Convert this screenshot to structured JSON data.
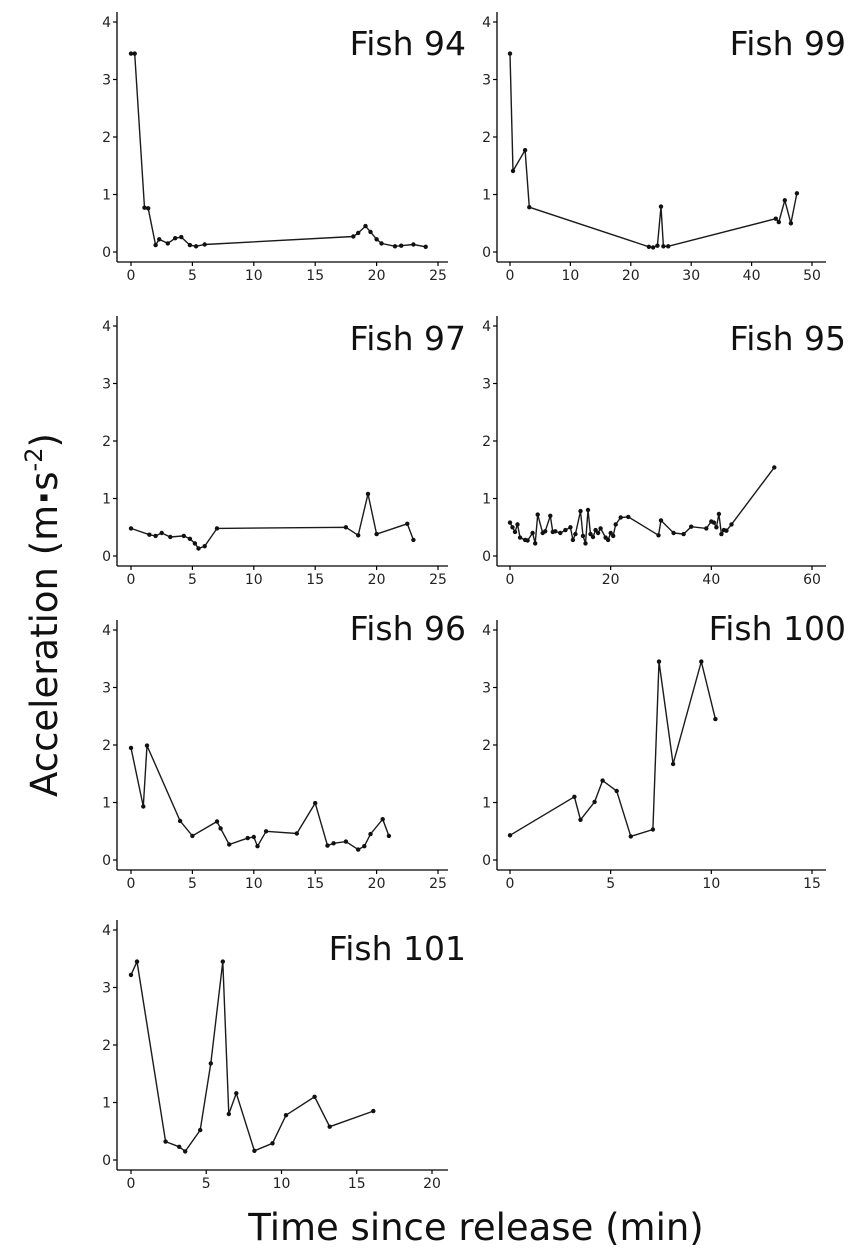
{
  "figure": {
    "ylabel_main": "Acceleration (m",
    "ylabel_dot": "·",
    "ylabel_s": "s",
    "ylabel_exp": "-2",
    "ylabel_close": ")",
    "xlabel": "Time since release (min)"
  },
  "chart_data": [
    {
      "type": "line",
      "title": "Fish 94",
      "xlim": [
        0,
        25
      ],
      "ylim": [
        0,
        4
      ],
      "xticks": [
        "0",
        "5",
        "10",
        "15",
        "20",
        "25"
      ],
      "yticks": [
        "0",
        "1",
        "2",
        "3",
        "4"
      ],
      "x": [
        0,
        0.3,
        1.1,
        1.4,
        2.0,
        2.3,
        3.0,
        3.6,
        4.1,
        4.8,
        5.3,
        6.0,
        18.1,
        18.5,
        19.1,
        19.5,
        20.0,
        20.4,
        21.5,
        22.0,
        23.0,
        24.0
      ],
      "y": [
        3.45,
        3.45,
        0.77,
        0.76,
        0.12,
        0.22,
        0.15,
        0.24,
        0.26,
        0.12,
        0.1,
        0.13,
        0.27,
        0.33,
        0.45,
        0.35,
        0.22,
        0.15,
        0.1,
        0.11,
        0.13,
        0.09
      ]
    },
    {
      "type": "line",
      "title": "Fish 99",
      "xlim": [
        0,
        50
      ],
      "ylim": [
        0,
        4
      ],
      "xticks": [
        "0",
        "10",
        "20",
        "30",
        "40",
        "50"
      ],
      "yticks": [
        "0",
        "1",
        "2",
        "3",
        "4"
      ],
      "x": [
        0,
        0.5,
        2.5,
        3.2,
        23.0,
        23.7,
        24.4,
        25.0,
        25.4,
        26.2,
        44.0,
        44.5,
        45.5,
        46.5,
        47.5
      ],
      "y": [
        3.45,
        1.41,
        1.77,
        0.78,
        0.09,
        0.08,
        0.11,
        0.79,
        0.1,
        0.1,
        0.58,
        0.52,
        0.9,
        0.5,
        1.02
      ]
    },
    {
      "type": "line",
      "title": "Fish 97",
      "xlim": [
        0,
        25
      ],
      "ylim": [
        0,
        4
      ],
      "xticks": [
        "0",
        "5",
        "10",
        "15",
        "20",
        "25"
      ],
      "yticks": [
        "0",
        "1",
        "2",
        "3",
        "4"
      ],
      "x": [
        0,
        1.5,
        2.0,
        2.5,
        3.2,
        4.3,
        4.8,
        5.2,
        5.5,
        6.0,
        7.0,
        17.5,
        18.5,
        19.3,
        20.0,
        22.5,
        23.0
      ],
      "y": [
        0.48,
        0.37,
        0.35,
        0.4,
        0.33,
        0.35,
        0.3,
        0.22,
        0.13,
        0.17,
        0.48,
        0.5,
        0.36,
        1.08,
        0.38,
        0.56,
        0.28
      ]
    },
    {
      "type": "line",
      "title": "Fish 95",
      "xlim": [
        0,
        60
      ],
      "ylim": [
        0,
        4
      ],
      "xticks": [
        "0",
        "20",
        "40",
        "60"
      ],
      "yticks": [
        "0",
        "1",
        "2",
        "3",
        "4"
      ],
      "x": [
        0,
        0.5,
        1.0,
        1.5,
        2.0,
        3.0,
        3.5,
        4.5,
        5.0,
        5.5,
        6.5,
        7.0,
        8.0,
        8.5,
        9.0,
        10.0,
        11.0,
        12.0,
        12.5,
        13.0,
        14.0,
        14.5,
        15.0,
        15.5,
        16.0,
        16.5,
        17.0,
        17.5,
        18.0,
        19.0,
        19.5,
        20.0,
        20.5,
        21.0,
        22.0,
        23.5,
        29.5,
        30.0,
        32.5,
        34.5,
        36.0,
        39.0,
        40.0,
        40.5,
        41.0,
        41.5,
        42.0,
        42.5,
        43.0,
        44.0,
        52.5
      ],
      "y": [
        0.58,
        0.5,
        0.42,
        0.55,
        0.32,
        0.28,
        0.27,
        0.4,
        0.22,
        0.72,
        0.4,
        0.43,
        0.7,
        0.42,
        0.43,
        0.4,
        0.45,
        0.5,
        0.28,
        0.38,
        0.78,
        0.35,
        0.22,
        0.8,
        0.38,
        0.33,
        0.45,
        0.4,
        0.48,
        0.32,
        0.28,
        0.4,
        0.35,
        0.55,
        0.67,
        0.68,
        0.36,
        0.62,
        0.4,
        0.38,
        0.51,
        0.48,
        0.6,
        0.58,
        0.5,
        0.73,
        0.38,
        0.45,
        0.44,
        0.55,
        1.54
      ]
    },
    {
      "type": "line",
      "title": "Fish 96",
      "xlim": [
        0,
        25
      ],
      "ylim": [
        0,
        4
      ],
      "xticks": [
        "0",
        "5",
        "10",
        "15",
        "20",
        "25"
      ],
      "yticks": [
        "0",
        "1",
        "2",
        "3",
        "4"
      ],
      "x": [
        0,
        1.0,
        1.3,
        4.0,
        5.0,
        7.0,
        7.3,
        8.0,
        9.5,
        10.0,
        10.3,
        11.0,
        13.5,
        15.0,
        16.0,
        16.5,
        17.5,
        18.5,
        19.0,
        19.5,
        20.5,
        21.0
      ],
      "y": [
        1.95,
        0.93,
        1.99,
        0.68,
        0.42,
        0.67,
        0.55,
        0.27,
        0.38,
        0.4,
        0.24,
        0.5,
        0.46,
        0.99,
        0.25,
        0.29,
        0.32,
        0.18,
        0.24,
        0.45,
        0.71,
        0.42
      ]
    },
    {
      "type": "line",
      "title": "Fish 100",
      "xlim": [
        0,
        15
      ],
      "ylim": [
        0,
        4
      ],
      "xticks": [
        "0",
        "5",
        "10",
        "15"
      ],
      "yticks": [
        "0",
        "1",
        "2",
        "3",
        "4"
      ],
      "x": [
        0,
        3.2,
        3.5,
        4.2,
        4.6,
        5.3,
        6.0,
        7.1,
        7.4,
        8.1,
        9.5,
        10.2
      ],
      "y": [
        0.43,
        1.1,
        0.7,
        1.01,
        1.38,
        1.2,
        0.41,
        0.53,
        3.45,
        1.67,
        3.45,
        2.45
      ]
    },
    {
      "type": "line",
      "title": "Fish 101",
      "xlim": [
        0,
        20
      ],
      "ylim": [
        0,
        4
      ],
      "xticks": [
        "0",
        "5",
        "10",
        "15",
        "20"
      ],
      "yticks": [
        "0",
        "1",
        "2",
        "3",
        "4"
      ],
      "x": [
        0,
        0.4,
        2.3,
        3.2,
        3.6,
        4.6,
        5.3,
        6.1,
        6.5,
        7.0,
        8.2,
        9.4,
        10.3,
        12.2,
        13.2,
        16.1
      ],
      "y": [
        3.22,
        3.45,
        0.32,
        0.23,
        0.15,
        0.52,
        1.68,
        3.45,
        0.8,
        1.16,
        0.16,
        0.29,
        0.78,
        1.1,
        0.58,
        0.85
      ]
    }
  ]
}
